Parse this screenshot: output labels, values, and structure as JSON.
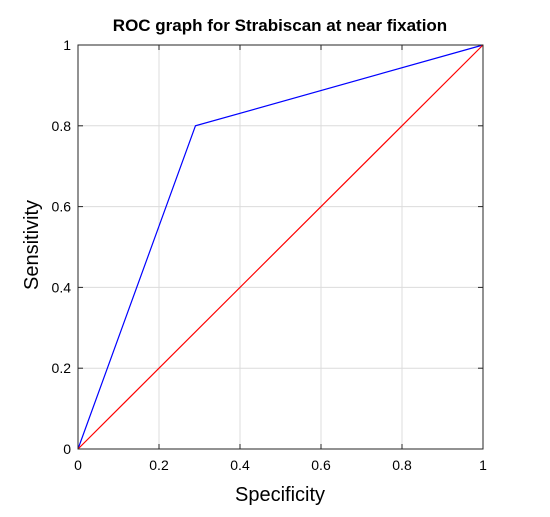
{
  "chart_data": {
    "type": "line",
    "title": "ROC graph for Strabiscan at near fixation",
    "xlabel": "Specificity",
    "ylabel": "Sensitivity",
    "xlim": [
      0,
      1
    ],
    "ylim": [
      0,
      1
    ],
    "xticks": [
      "0",
      "0.2",
      "0.4",
      "0.6",
      "0.8",
      "1"
    ],
    "yticks": [
      "0",
      "0.2",
      "0.4",
      "0.6",
      "0.8",
      "1"
    ],
    "grid": true,
    "legend": "none",
    "series": [
      {
        "color": "#0000ff",
        "x": [
          0,
          0.29,
          1
        ],
        "y": [
          0,
          0.8,
          1
        ]
      },
      {
        "color": "#ff0000",
        "x": [
          0,
          1
        ],
        "y": [
          0,
          1
        ]
      }
    ]
  }
}
